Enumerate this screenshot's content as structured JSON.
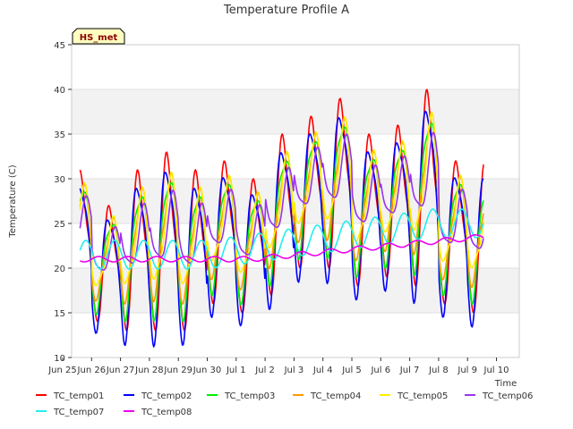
{
  "chart_data": {
    "type": "line",
    "title": "Temperature Profile A",
    "xlabel": "Time",
    "ylabel": "Temperature (C)",
    "ylim": [
      10,
      45
    ],
    "xlim": [
      0,
      15.2
    ],
    "yticks": [
      10,
      15,
      20,
      25,
      30,
      35,
      40,
      45
    ],
    "xticks": [
      {
        "x": 0,
        "label": "Jun 25"
      },
      {
        "x": 1,
        "label": "Jun 26"
      },
      {
        "x": 2,
        "label": "Jun 27"
      },
      {
        "x": 3,
        "label": "Jun 28"
      },
      {
        "x": 4,
        "label": "Jun 29"
      },
      {
        "x": 5,
        "label": "Jun 30"
      },
      {
        "x": 6,
        "label": "Jul 1"
      },
      {
        "x": 7,
        "label": "Jul 2"
      },
      {
        "x": 8,
        "label": "Jul 3"
      },
      {
        "x": 9,
        "label": "Jul 4"
      },
      {
        "x": 10,
        "label": "Jul 5"
      },
      {
        "x": 11,
        "label": "Jul 6"
      },
      {
        "x": 12,
        "label": "Jul 7"
      },
      {
        "x": 13,
        "label": "Jul 8"
      },
      {
        "x": 14,
        "label": "Jul 9"
      },
      {
        "x": 15,
        "label": "Jul 10"
      }
    ],
    "badge": "HS_met",
    "background_bands": true,
    "legend_position": "bottom",
    "day_minmax": [
      [
        16,
        31
      ],
      [
        14,
        27
      ],
      [
        13,
        31
      ],
      [
        13,
        33
      ],
      [
        13,
        31
      ],
      [
        16,
        32
      ],
      [
        15,
        30
      ],
      [
        17,
        35
      ],
      [
        20,
        37
      ],
      [
        20,
        39
      ],
      [
        18,
        35
      ],
      [
        19,
        36
      ],
      [
        18,
        40
      ],
      [
        16,
        32
      ],
      [
        15,
        32
      ]
    ],
    "series": [
      {
        "name": "TC_temp01",
        "color": "#ff0000"
      },
      {
        "name": "TC_temp02",
        "color": "#0000ff"
      },
      {
        "name": "TC_temp03",
        "color": "#00ee00"
      },
      {
        "name": "TC_temp04",
        "color": "#ff9900"
      },
      {
        "name": "TC_temp05",
        "color": "#ffee00"
      },
      {
        "name": "TC_temp06",
        "color": "#9933ee"
      },
      {
        "name": "TC_temp07",
        "color": "#22eeee"
      },
      {
        "name": "TC_temp08",
        "color": "#ee00ee"
      }
    ]
  }
}
